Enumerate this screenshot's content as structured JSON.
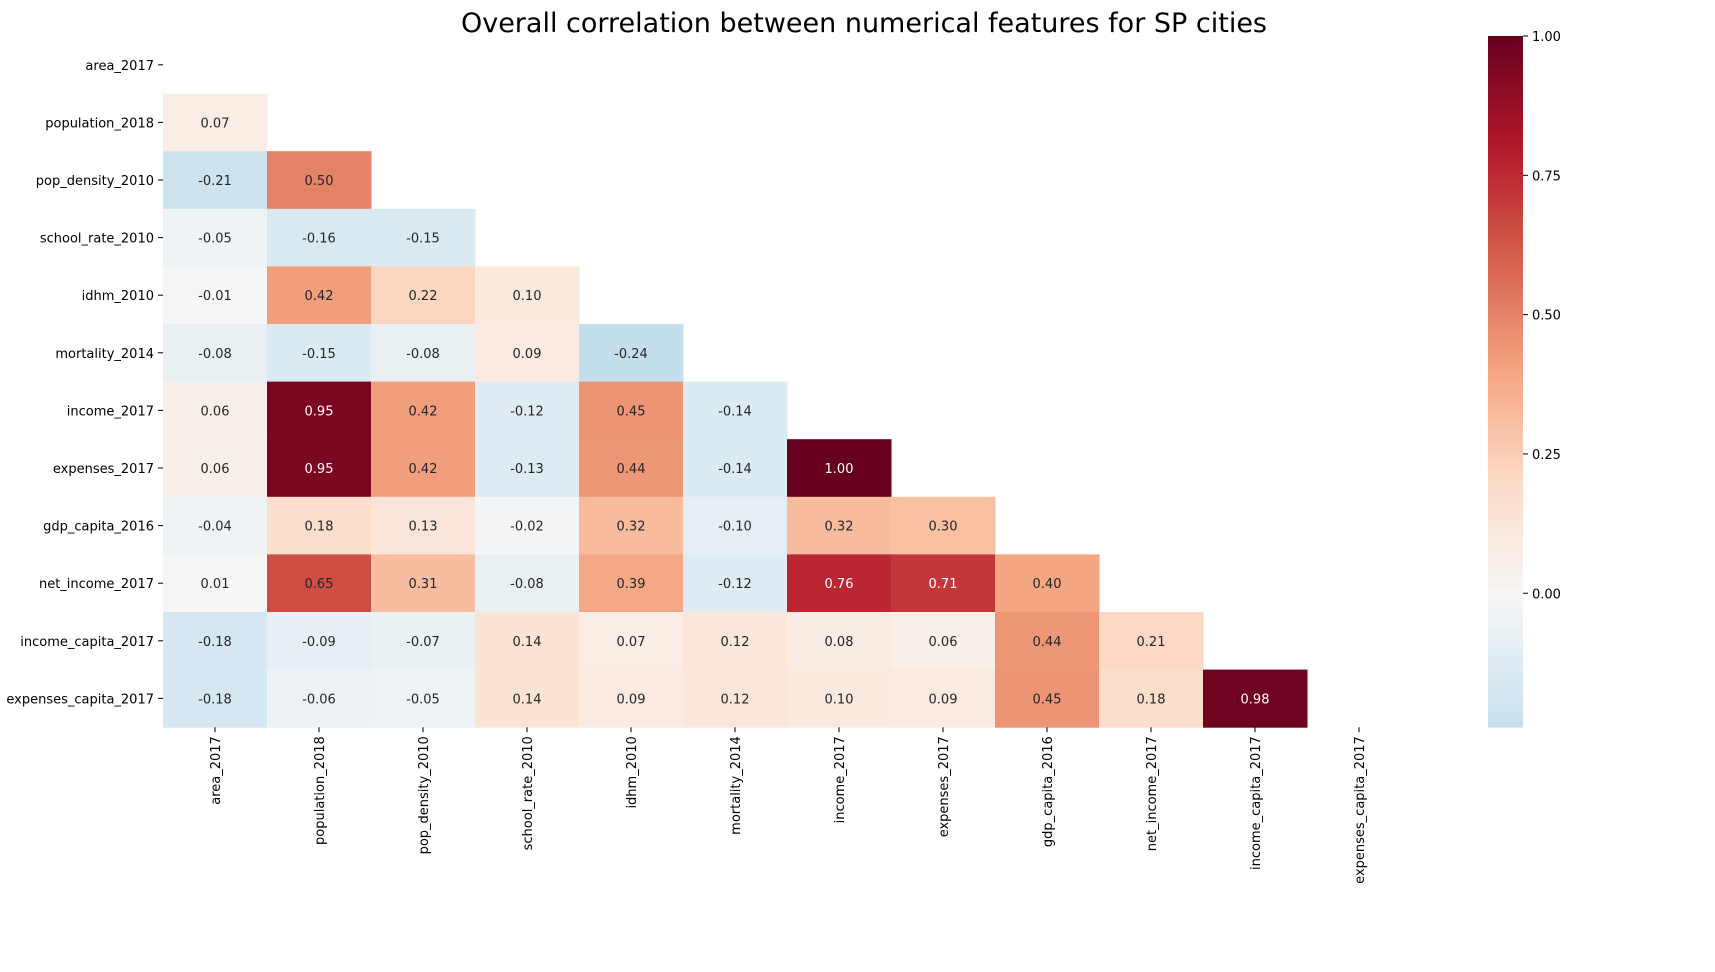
{
  "chart_data": {
    "type": "heatmap",
    "title": "Overall correlation between numerical features for SP cities",
    "xlabel": "",
    "ylabel": "",
    "mask": "upper-triangle-including-diagonal",
    "labels": [
      "area_2017",
      "population_2018",
      "pop_density_2010",
      "school_rate_2010",
      "idhm_2010",
      "mortality_2014",
      "income_2017",
      "expenses_2017",
      "gdp_capita_2016",
      "net_income_2017",
      "income_capita_2017",
      "expenses_capita_2017"
    ],
    "matrix": [
      [],
      [
        0.07
      ],
      [
        -0.21,
        0.5
      ],
      [
        -0.05,
        -0.16,
        -0.15
      ],
      [
        -0.01,
        0.42,
        0.22,
        0.1
      ],
      [
        -0.08,
        -0.15,
        -0.08,
        0.09,
        -0.24
      ],
      [
        0.06,
        0.95,
        0.42,
        -0.12,
        0.45,
        -0.14
      ],
      [
        0.06,
        0.95,
        0.42,
        -0.13,
        0.44,
        -0.14,
        1.0
      ],
      [
        -0.04,
        0.18,
        0.13,
        -0.02,
        0.32,
        -0.1,
        0.32,
        0.3
      ],
      [
        0.01,
        0.65,
        0.31,
        -0.08,
        0.39,
        -0.12,
        0.76,
        0.71,
        0.4
      ],
      [
        -0.18,
        -0.09,
        -0.07,
        0.14,
        0.07,
        0.12,
        0.08,
        0.06,
        0.44,
        0.21
      ],
      [
        -0.18,
        -0.06,
        -0.05,
        0.14,
        0.09,
        0.12,
        0.1,
        0.09,
        0.45,
        0.18,
        0.98
      ]
    ],
    "colormap": "RdBu_r",
    "center": 0,
    "vmin": -0.24,
    "vmax": 1.0,
    "colorbar": {
      "ticks": [
        0.0,
        0.25,
        0.5,
        0.75,
        1.0
      ],
      "tick_labels": [
        "0.00",
        "0.25",
        "0.50",
        "0.75",
        "1.00"
      ],
      "placement": "right"
    }
  }
}
